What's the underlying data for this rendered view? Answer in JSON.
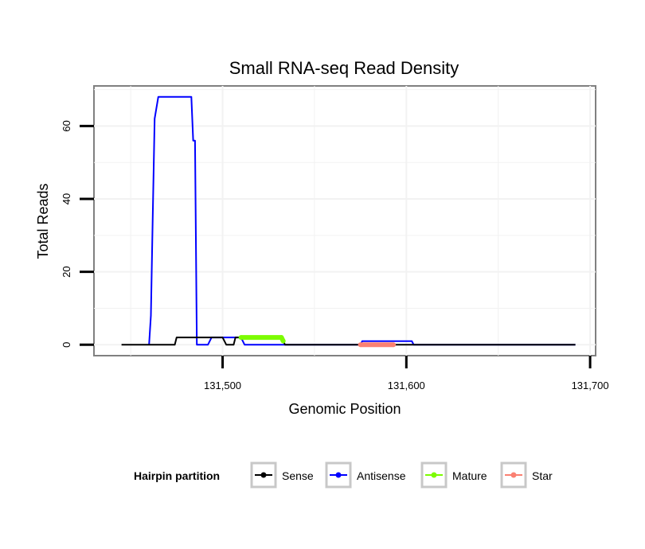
{
  "chart_data": {
    "type": "line",
    "title": "Small RNA-seq Read Density",
    "xlabel": "Genomic Position",
    "ylabel": "Total Reads",
    "xlim": [
      131430,
      131703
    ],
    "ylim": [
      -3,
      71
    ],
    "x_ticks": [
      131500,
      131600,
      131700
    ],
    "x_tick_labels": [
      "131,500",
      "131,600",
      "131,700"
    ],
    "y_ticks": [
      0,
      20,
      40,
      60
    ],
    "y_tick_labels": [
      "0",
      "20",
      "40",
      "60"
    ],
    "grid": true,
    "legend": {
      "title": "Hairpin partition",
      "position": "bottom",
      "entries": [
        {
          "name": "Sense",
          "color": "#000000"
        },
        {
          "name": "Antisense",
          "color": "#0000ff"
        },
        {
          "name": "Mature",
          "color": "#7cfc00"
        },
        {
          "name": "Star",
          "color": "#fa8072"
        }
      ]
    },
    "series": [
      {
        "name": "Antisense",
        "color": "#0000ff",
        "points": [
          [
            131460,
            0
          ],
          [
            131461,
            8
          ],
          [
            131462,
            35
          ],
          [
            131463,
            62
          ],
          [
            131465,
            68
          ],
          [
            131483,
            68
          ],
          [
            131484,
            56
          ],
          [
            131485,
            56
          ],
          [
            131486,
            0
          ],
          [
            131492,
            0
          ],
          [
            131494,
            2
          ],
          [
            131510,
            2
          ],
          [
            131512,
            0
          ],
          [
            131575,
            0
          ],
          [
            131576,
            1
          ],
          [
            131603,
            1
          ],
          [
            131604,
            0
          ],
          [
            131692,
            0
          ]
        ]
      },
      {
        "name": "Sense",
        "color": "#000000",
        "points": [
          [
            131445,
            0
          ],
          [
            131474,
            0
          ],
          [
            131475,
            2
          ],
          [
            131500,
            2
          ],
          [
            131502,
            0
          ],
          [
            131506,
            0
          ],
          [
            131507,
            2
          ],
          [
            131532,
            2
          ],
          [
            131534,
            0
          ],
          [
            131692,
            0
          ]
        ]
      },
      {
        "name": "Mature",
        "color": "#7cfc00",
        "points": [
          [
            131510,
            2
          ],
          [
            131532,
            2
          ],
          [
            131533,
            1
          ]
        ]
      },
      {
        "name": "Star",
        "color": "#fa8072",
        "points": [
          [
            131575,
            0
          ],
          [
            131593,
            0
          ]
        ]
      }
    ]
  }
}
